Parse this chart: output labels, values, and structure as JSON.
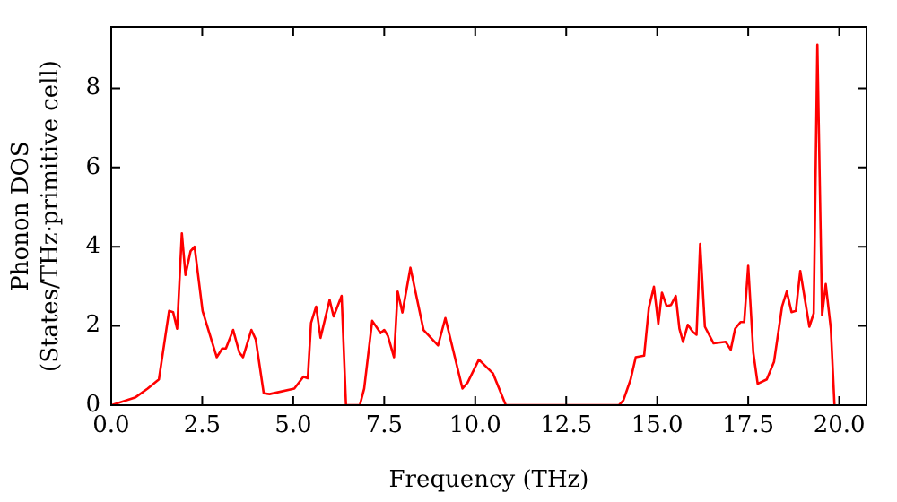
{
  "chart_data": {
    "type": "line",
    "xlabel": "Frequency (THz)",
    "ylabel": "Phonon DOS\n(States/THz·primitive cell)",
    "grid": false,
    "legend": false,
    "marker": "none",
    "line_style": "solid",
    "xlim": [
      0,
      20.75
    ],
    "ylim": [
      0,
      9.55
    ],
    "xticks": [
      {
        "value": 0,
        "label": "0.0"
      },
      {
        "value": 2.5,
        "label": "2.5"
      },
      {
        "value": 5,
        "label": "5.0"
      },
      {
        "value": 7.5,
        "label": "7.5"
      },
      {
        "value": 10,
        "label": "10.0"
      },
      {
        "value": 12.5,
        "label": "12.5"
      },
      {
        "value": 15,
        "label": "15.0"
      },
      {
        "value": 17.5,
        "label": "17.5"
      },
      {
        "value": 20,
        "label": "20.0"
      }
    ],
    "yticks": [
      0,
      2,
      4,
      6,
      8
    ],
    "series": [
      {
        "color": "#ff0000",
        "x": [
          0,
          0.67,
          1.0,
          1.31,
          1.59,
          1.7,
          1.81,
          1.94,
          2.04,
          2.18,
          2.29,
          2.51,
          2.9,
          3.05,
          3.15,
          3.35,
          3.52,
          3.62,
          3.85,
          3.97,
          4.19,
          4.35,
          5.03,
          5.28,
          5.4,
          5.49,
          5.63,
          5.75,
          6.0,
          6.11,
          6.33,
          6.45,
          6.83,
          6.95,
          7.17,
          7.4,
          7.5,
          7.6,
          7.77,
          7.87,
          8.0,
          8.22,
          8.58,
          8.98,
          9.18,
          9.65,
          9.79,
          10.1,
          10.49,
          10.84,
          13.95,
          14.07,
          14.27,
          14.41,
          14.64,
          14.77,
          14.91,
          15.03,
          15.13,
          15.26,
          15.38,
          15.51,
          15.61,
          15.71,
          15.84,
          15.98,
          16.08,
          16.18,
          16.31,
          16.55,
          16.88,
          17.02,
          17.14,
          17.29,
          17.39,
          17.5,
          17.64,
          17.76,
          18.01,
          18.21,
          18.43,
          18.56,
          18.69,
          18.81,
          18.93,
          19.18,
          19.3,
          19.4,
          19.53,
          19.63,
          19.77,
          19.87
        ],
        "values": [
          0,
          0.2,
          0.42,
          0.65,
          2.38,
          2.35,
          1.93,
          4.34,
          3.29,
          3.89,
          4.0,
          2.38,
          1.21,
          1.43,
          1.43,
          1.9,
          1.33,
          1.21,
          1.9,
          1.66,
          0.3,
          0.28,
          0.42,
          0.72,
          0.68,
          2.08,
          2.49,
          1.7,
          2.66,
          2.24,
          2.76,
          0,
          0,
          0.42,
          2.13,
          1.82,
          1.9,
          1.75,
          1.21,
          2.87,
          2.34,
          3.47,
          1.9,
          1.51,
          2.2,
          0.42,
          0.57,
          1.15,
          0.8,
          0,
          0,
          0.12,
          0.65,
          1.21,
          1.25,
          2.46,
          2.99,
          2.05,
          2.84,
          2.5,
          2.53,
          2.76,
          1.93,
          1.6,
          2.03,
          1.85,
          1.78,
          4.07,
          1.98,
          1.56,
          1.6,
          1.4,
          1.93,
          2.1,
          2.1,
          3.52,
          1.33,
          0.54,
          0.65,
          1.1,
          2.49,
          2.87,
          2.35,
          2.38,
          3.39,
          1.98,
          2.32,
          9.1,
          2.27,
          3.06,
          1.93,
          0
        ]
      }
    ]
  }
}
